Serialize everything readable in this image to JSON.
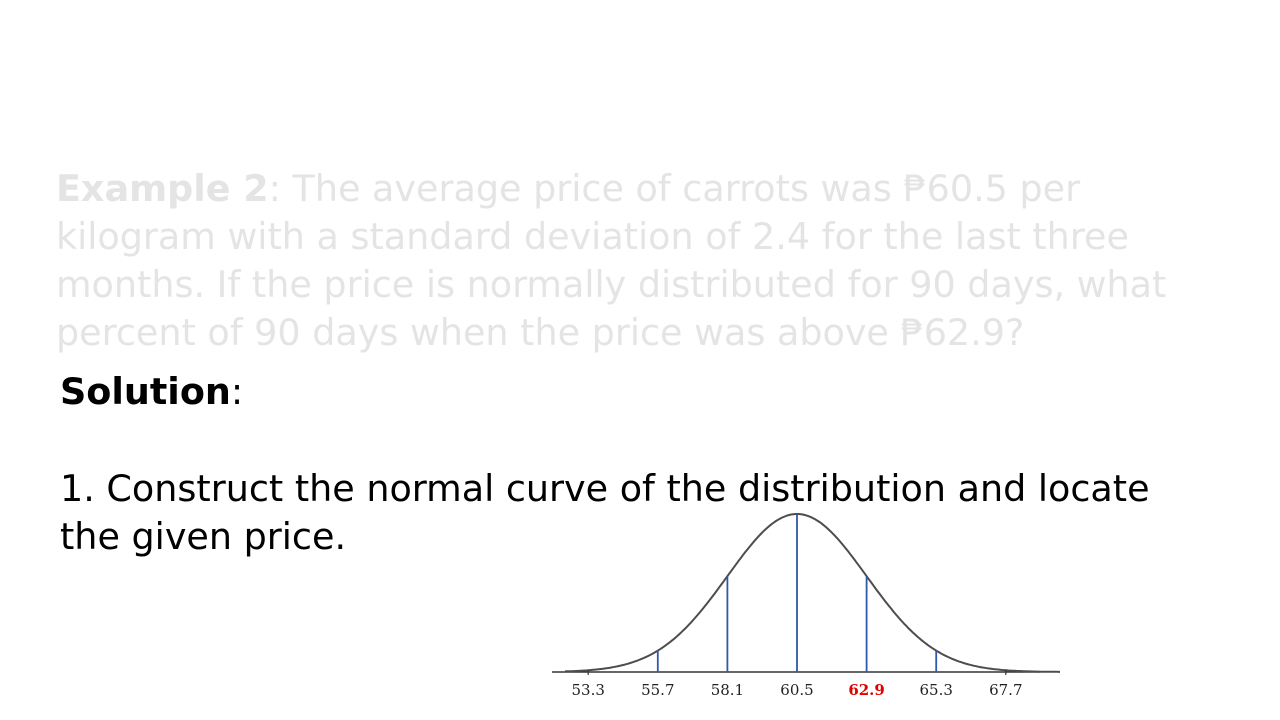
{
  "example": {
    "label": "Example 2",
    "sep": ":",
    "text": " The average price of carrots was ₱60.5 per kilogram with a standard deviation of 2.4 for the last three months. If the price is normally distributed for 90 days, what percent of 90 days when the price was above ₱62.9?"
  },
  "solution": {
    "label": "Solution",
    "sep": ":"
  },
  "step1": {
    "text": "1. Construct the normal curve of the distribution and locate the given price."
  },
  "chart_data": {
    "type": "line",
    "mean": 60.5,
    "sd": 2.4,
    "x_ticks": [
      "53.3",
      "55.7",
      "58.1",
      "60.5",
      "62.9",
      "65.3",
      "67.7"
    ],
    "highlight": "62.9",
    "xlim": [
      52.5,
      70.5
    ],
    "curve_color": "#4d4d4d",
    "line_color": "#2e5aa8",
    "highlight_color": "#e00000"
  }
}
